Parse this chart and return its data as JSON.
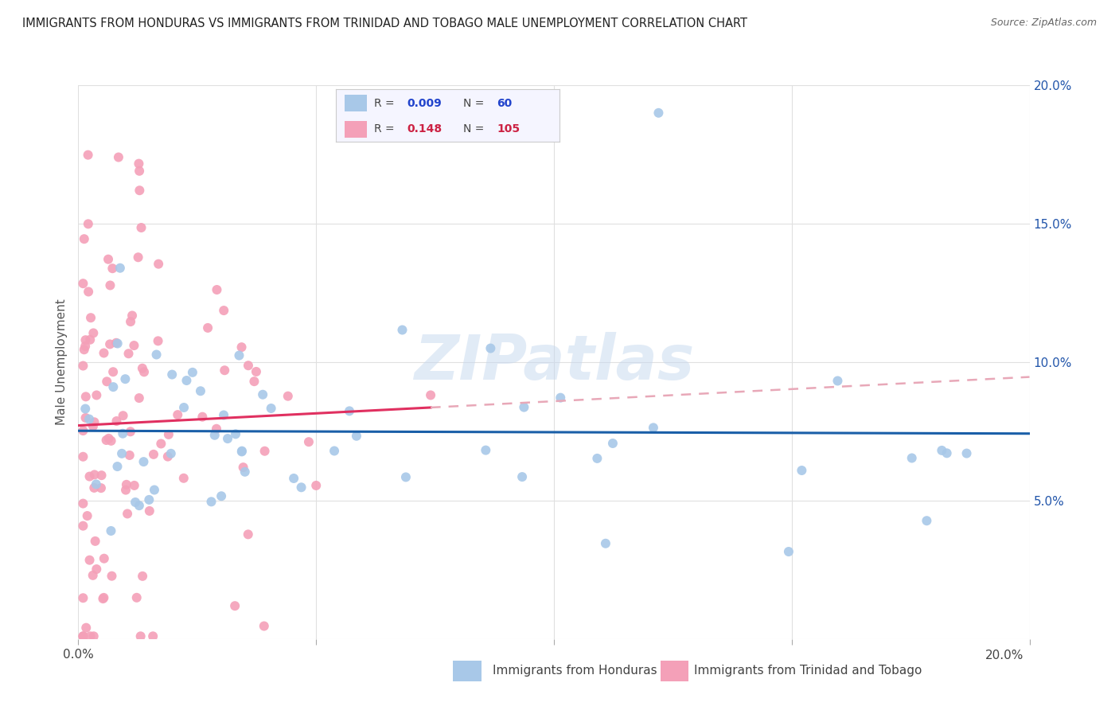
{
  "title": "IMMIGRANTS FROM HONDURAS VS IMMIGRANTS FROM TRINIDAD AND TOBAGO MALE UNEMPLOYMENT CORRELATION CHART",
  "source": "Source: ZipAtlas.com",
  "xlabel_honduras": "Immigrants from Honduras",
  "xlabel_tt": "Immigrants from Trinidad and Tobago",
  "ylabel": "Male Unemployment",
  "xlim": [
    0.0,
    0.2
  ],
  "ylim": [
    0.0,
    0.2
  ],
  "watermark": "ZIPatlas",
  "honduras_color": "#a8c8e8",
  "tt_color": "#f4a0b8",
  "honduras_line_color": "#1a5fa8",
  "tt_line_color": "#e03060",
  "tt_dashed_color": "#e8a8b8",
  "background_color": "#ffffff",
  "grid_color": "#e0e0e0",
  "title_color": "#222222",
  "source_color": "#666666",
  "right_tick_color": "#2255aa",
  "ylabel_color": "#555555"
}
